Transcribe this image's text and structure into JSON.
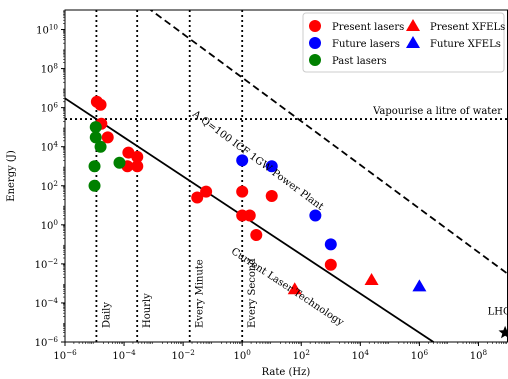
{
  "chart_data": {
    "type": "scatter",
    "xlabel": "Rate (Hz)",
    "ylabel": "Energy (J)",
    "xscale": "log",
    "yscale": "log",
    "xlim": [
      1e-06,
      1000000000.0
    ],
    "ylim": [
      1e-06,
      100000000000.0
    ],
    "x_ticks": [
      {
        "value": 1e-06,
        "base": "10",
        "exp": "−6"
      },
      {
        "value": 0.0001,
        "base": "10",
        "exp": "−4"
      },
      {
        "value": 0.01,
        "base": "10",
        "exp": "−2"
      },
      {
        "value": 1,
        "base": "10",
        "exp": "0"
      },
      {
        "value": 100.0,
        "base": "10",
        "exp": "2"
      },
      {
        "value": 10000.0,
        "base": "10",
        "exp": "4"
      },
      {
        "value": 1000000.0,
        "base": "10",
        "exp": "6"
      },
      {
        "value": 100000000.0,
        "base": "10",
        "exp": "8"
      }
    ],
    "y_ticks": [
      {
        "value": 1e-06,
        "base": "10",
        "exp": "−6"
      },
      {
        "value": 0.0001,
        "base": "10",
        "exp": "−4"
      },
      {
        "value": 0.01,
        "base": "10",
        "exp": "−2"
      },
      {
        "value": 1,
        "base": "10",
        "exp": "0"
      },
      {
        "value": 100.0,
        "base": "10",
        "exp": "2"
      },
      {
        "value": 10000.0,
        "base": "10",
        "exp": "4"
      },
      {
        "value": 1000000.0,
        "base": "10",
        "exp": "6"
      },
      {
        "value": 100000000.0,
        "base": "10",
        "exp": "8"
      },
      {
        "value": 10000000000.0,
        "base": "10",
        "exp": "10"
      }
    ],
    "series": [
      {
        "name": "Present lasers",
        "marker": "circle",
        "color": "#ff0000",
        "points": [
          [
            1.2e-05,
            2000000.0
          ],
          [
            1.6e-05,
            1400000.0
          ],
          [
            1.7e-05,
            150000.0
          ],
          [
            2.8e-05,
            30000.0
          ],
          [
            0.00014,
            5000.0
          ],
          [
            0.00013,
            1000.0
          ],
          [
            0.00028,
            3000.0
          ],
          [
            0.00028,
            1000.0
          ],
          [
            0.03,
            25
          ],
          [
            0.06,
            50
          ],
          [
            1.0,
            50
          ],
          [
            1.0,
            3
          ],
          [
            1.8,
            3
          ],
          [
            3,
            0.3
          ],
          [
            10,
            30
          ],
          [
            1000,
            0.009
          ]
        ]
      },
      {
        "name": "Future lasers",
        "marker": "circle",
        "color": "#0000ff",
        "points": [
          [
            1.0,
            2000
          ],
          [
            10,
            1000
          ],
          [
            300,
            3
          ],
          [
            1000,
            0.1
          ]
        ]
      },
      {
        "name": "Past lasers",
        "marker": "circle",
        "color": "#008000",
        "points": [
          [
            1.1e-05,
            100000.0
          ],
          [
            1.1e-05,
            30000.0
          ],
          [
            1.6e-05,
            10000.0
          ],
          [
            1e-05,
            1000
          ],
          [
            1e-05,
            100
          ],
          [
            7e-05,
            1500
          ]
        ]
      },
      {
        "name": "Present XFELs",
        "marker": "triangle",
        "color": "#ff0000",
        "points": [
          [
            60,
            0.0005
          ],
          [
            24000,
            0.0015
          ]
        ]
      },
      {
        "name": "Future XFELs",
        "marker": "triangle",
        "color": "#0000ff",
        "points": [
          [
            1000000.0,
            0.0007
          ]
        ]
      }
    ],
    "lhc": {
      "label": "LHC",
      "x": 800000000.0,
      "y": 3e-06,
      "marker": "star",
      "color": "#000000"
    },
    "lines": [
      {
        "label": "Current Laser Technology",
        "style": "solid",
        "points": [
          [
            1e-06,
            3000000.0
          ],
          [
            3000000.0,
            1e-06
          ]
        ]
      },
      {
        "label": "A Q=100 ICF 1GW Power Plant",
        "style": "dashed",
        "points": [
          [
            0.0003,
            300000000000.0
          ],
          [
            1000000000.0,
            0.003
          ]
        ]
      },
      {
        "label": "Vapourise a litre of water",
        "style": "dotted",
        "hline": 260000.0
      }
    ],
    "vlines": [
      {
        "label": "Daily",
        "x": 1.157e-05
      },
      {
        "label": "Hourly",
        "x": 0.000278
      },
      {
        "label": "Every Minute",
        "x": 0.0167
      },
      {
        "label": "Every Second",
        "x": 1.0
      }
    ],
    "legend": {
      "placement": "top-right",
      "items": [
        {
          "label": "Present lasers",
          "marker": "circle",
          "color": "#ff0000"
        },
        {
          "label": "Present XFELs",
          "marker": "triangle",
          "color": "#ff0000"
        },
        {
          "label": "Future lasers",
          "marker": "circle",
          "color": "#0000ff"
        },
        {
          "label": "Future XFELs",
          "marker": "triangle",
          "color": "#0000ff"
        },
        {
          "label": "Past lasers",
          "marker": "circle",
          "color": "#008000"
        }
      ]
    },
    "grid": false
  }
}
